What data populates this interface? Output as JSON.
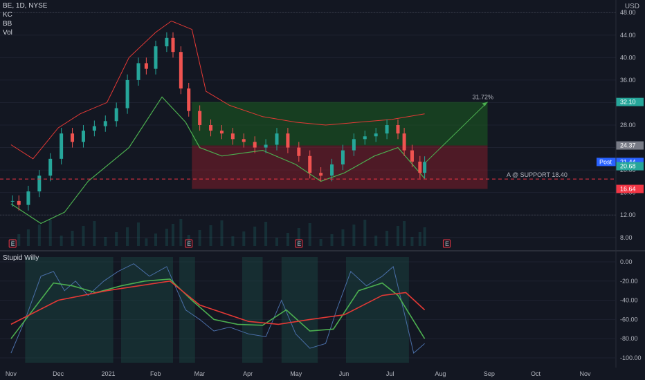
{
  "header": {
    "symbol_line": "BE, 1D, NYSE",
    "indicators": [
      "KC",
      "BB",
      "Vol"
    ],
    "osc_title": "Stupid Willy",
    "currency": "USD"
  },
  "chart_data": [
    {
      "type": "candlestick",
      "title": "BE, 1D, NYSE",
      "x_ticks": [
        "Nov",
        "Dec",
        "2021",
        "Feb",
        "Mar",
        "Apr",
        "May",
        "Jun",
        "Jul",
        "Aug",
        "Sep",
        "Oct",
        "Nov"
      ],
      "y_ticks": [
        "8.00",
        "12.00",
        "16.00",
        "20.00",
        "24.00",
        "28.00",
        "32.00",
        "36.00",
        "40.00",
        "44.00",
        "48.00"
      ],
      "ylim": [
        6.5,
        49.5
      ],
      "close_series": [
        [
          "2020-11-02",
          14.5
        ],
        [
          "2020-11-06",
          13.8
        ],
        [
          "2020-11-12",
          16.2
        ],
        [
          "2020-11-19",
          19.0
        ],
        [
          "2020-11-26",
          22.0
        ],
        [
          "2020-12-03",
          26.5
        ],
        [
          "2020-12-10",
          25.0
        ],
        [
          "2020-12-17",
          27.0
        ],
        [
          "2020-12-24",
          27.8
        ],
        [
          "2020-12-31",
          28.7
        ],
        [
          "2021-01-07",
          31.0
        ],
        [
          "2021-01-14",
          36.0
        ],
        [
          "2021-01-21",
          39.0
        ],
        [
          "2021-01-26",
          38.0
        ],
        [
          "2021-02-01",
          42.0
        ],
        [
          "2021-02-08",
          43.5
        ],
        [
          "2021-02-12",
          41.0
        ],
        [
          "2021-02-17",
          34.5
        ],
        [
          "2021-02-22",
          30.5
        ],
        [
          "2021-03-01",
          28.0
        ],
        [
          "2021-03-08",
          27.0
        ],
        [
          "2021-03-15",
          26.5
        ],
        [
          "2021-03-22",
          25.5
        ],
        [
          "2021-03-29",
          25.0
        ],
        [
          "2021-04-05",
          24.0
        ],
        [
          "2021-04-12",
          24.5
        ],
        [
          "2021-04-19",
          26.5
        ],
        [
          "2021-04-26",
          24.0
        ],
        [
          "2021-05-03",
          22.5
        ],
        [
          "2021-05-10",
          19.5
        ],
        [
          "2021-05-17",
          19.0
        ],
        [
          "2021-05-24",
          21.0
        ],
        [
          "2021-05-31",
          23.5
        ],
        [
          "2021-06-07",
          25.5
        ],
        [
          "2021-06-14",
          26.0
        ],
        [
          "2021-06-21",
          26.5
        ],
        [
          "2021-06-28",
          28.0
        ],
        [
          "2021-07-05",
          26.5
        ],
        [
          "2021-07-09",
          23.5
        ],
        [
          "2021-07-14",
          21.5
        ],
        [
          "2021-07-19",
          19.5
        ],
        [
          "2021-07-22",
          21.44
        ]
      ],
      "upper_band": [
        [
          "2020-11-01",
          24.5
        ],
        [
          "2020-11-15",
          22.0
        ],
        [
          "2020-12-01",
          27.5
        ],
        [
          "2020-12-15",
          30.0
        ],
        [
          "2021-01-01",
          32.0
        ],
        [
          "2021-01-15",
          40.0
        ],
        [
          "2021-02-01",
          44.5
        ],
        [
          "2021-02-11",
          46.5
        ],
        [
          "2021-02-24",
          45.0
        ],
        [
          "2021-03-05",
          34.0
        ],
        [
          "2021-03-20",
          31.5
        ],
        [
          "2021-04-10",
          29.5
        ],
        [
          "2021-05-01",
          28.5
        ],
        [
          "2021-05-20",
          28.0
        ],
        [
          "2021-06-10",
          28.5
        ],
        [
          "2021-07-01",
          29.0
        ],
        [
          "2021-07-22",
          30.0
        ]
      ],
      "lower_band": [
        [
          "2020-11-01",
          14.0
        ],
        [
          "2020-11-20",
          10.5
        ],
        [
          "2020-12-05",
          12.5
        ],
        [
          "2020-12-20",
          18.0
        ],
        [
          "2021-01-15",
          24.0
        ],
        [
          "2021-02-05",
          33.0
        ],
        [
          "2021-02-20",
          28.5
        ],
        [
          "2021-03-01",
          24.0
        ],
        [
          "2021-03-15",
          22.5
        ],
        [
          "2021-04-10",
          23.5
        ],
        [
          "2021-05-01",
          21.0
        ],
        [
          "2021-05-17",
          18.0
        ],
        [
          "2021-06-01",
          19.5
        ],
        [
          "2021-06-20",
          22.5
        ],
        [
          "2021-07-05",
          24.0
        ],
        [
          "2021-07-22",
          18.5
        ]
      ],
      "support_label": "A @ SUPPORT 18.40",
      "support_level": 18.4,
      "target_label": "31.72%",
      "target_zone": {
        "from": "2021-02-24",
        "to": "2021-08-31",
        "top": 32.1,
        "entry": 24.37,
        "stop": 16.64
      },
      "price_tags": [
        {
          "value": 32.1,
          "label": "32.10",
          "color": "#26a69a"
        },
        {
          "value": 24.37,
          "label": "24.37",
          "color": "#787b86"
        },
        {
          "value": 21.44,
          "label": "21.44",
          "color": "#2962ff",
          "prefix": "Post"
        },
        {
          "value": 20.68,
          "label": "20.68",
          "color": "#26a69a"
        },
        {
          "value": 16.64,
          "label": "16.64",
          "color": "#f23645"
        }
      ],
      "earnings_markers": [
        {
          "date": "2020-11-02",
          "label": "E"
        },
        {
          "date": "2021-02-22",
          "label": "E"
        },
        {
          "date": "2021-05-03",
          "label": "E"
        },
        {
          "date": "2021-08-05",
          "label": "E"
        }
      ]
    },
    {
      "type": "line",
      "title": "Stupid Willy",
      "y_ticks": [
        "0.00",
        "-20.00",
        "-40.00",
        "-60.00",
        "-80.00",
        "-100.00"
      ],
      "ylim": [
        -105,
        5
      ],
      "series": [
        {
          "name": "",
          "color": "#4a6fa8",
          "values": [
            [
              "2020-11-01",
              -95
            ],
            [
              "2020-11-10",
              -60
            ],
            [
              "2020-11-20",
              -15
            ],
            [
              "2020-11-28",
              -10
            ],
            [
              "2020-12-05",
              -30
            ],
            [
              "2020-12-12",
              -20
            ],
            [
              "2020-12-20",
              -35
            ],
            [
              "2020-12-30",
              -20
            ],
            [
              "2021-01-08",
              -10
            ],
            [
              "2021-01-18",
              -2
            ],
            [
              "2021-01-28",
              -15
            ],
            [
              "2021-02-08",
              -5
            ],
            [
              "2021-02-20",
              -50
            ],
            [
              "2021-03-01",
              -60
            ],
            [
              "2021-03-10",
              -72
            ],
            [
              "2021-03-20",
              -68
            ],
            [
              "2021-04-01",
              -75
            ],
            [
              "2021-04-12",
              -78
            ],
            [
              "2021-04-22",
              -40
            ],
            [
              "2021-05-01",
              -75
            ],
            [
              "2021-05-10",
              -90
            ],
            [
              "2021-05-20",
              -85
            ],
            [
              "2021-05-27",
              -50
            ],
            [
              "2021-06-05",
              -10
            ],
            [
              "2021-06-15",
              -25
            ],
            [
              "2021-06-25",
              -15
            ],
            [
              "2021-07-02",
              -5
            ],
            [
              "2021-07-10",
              -60
            ],
            [
              "2021-07-15",
              -95
            ],
            [
              "2021-07-22",
              -85
            ]
          ]
        },
        {
          "name": "",
          "color": "#4caf50",
          "values": [
            [
              "2020-11-01",
              -80
            ],
            [
              "2020-11-15",
              -50
            ],
            [
              "2020-11-28",
              -22
            ],
            [
              "2020-12-10",
              -25
            ],
            [
              "2020-12-25",
              -32
            ],
            [
              "2021-01-10",
              -25
            ],
            [
              "2021-01-25",
              -20
            ],
            [
              "2021-02-10",
              -18
            ],
            [
              "2021-02-24",
              -40
            ],
            [
              "2021-03-10",
              -60
            ],
            [
              "2021-03-25",
              -65
            ],
            [
              "2021-04-10",
              -66
            ],
            [
              "2021-04-25",
              -50
            ],
            [
              "2021-05-10",
              -72
            ],
            [
              "2021-05-25",
              -70
            ],
            [
              "2021-06-10",
              -30
            ],
            [
              "2021-06-25",
              -22
            ],
            [
              "2021-07-05",
              -35
            ],
            [
              "2021-07-22",
              -80
            ]
          ]
        },
        {
          "name": "",
          "color": "#e53935",
          "values": [
            [
              "2020-11-01",
              -65
            ],
            [
              "2020-12-01",
              -40
            ],
            [
              "2021-01-01",
              -30
            ],
            [
              "2021-02-10",
              -20
            ],
            [
              "2021-03-01",
              -45
            ],
            [
              "2021-04-01",
              -62
            ],
            [
              "2021-04-20",
              -65
            ],
            [
              "2021-05-10",
              -60
            ],
            [
              "2021-06-01",
              -55
            ],
            [
              "2021-06-25",
              -35
            ],
            [
              "2021-07-10",
              -32
            ],
            [
              "2021-07-22",
              -50
            ]
          ]
        }
      ]
    }
  ],
  "colors": {
    "background": "#131722",
    "up": "#26a69a",
    "down": "#ef5350",
    "target_green": "#1e4d2b",
    "stop_red": "#5c1a22"
  }
}
